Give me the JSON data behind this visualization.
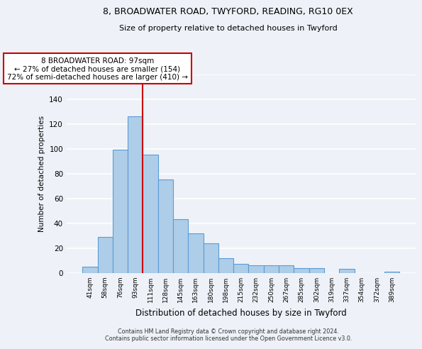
{
  "title1": "8, BROADWATER ROAD, TWYFORD, READING, RG10 0EX",
  "title2": "Size of property relative to detached houses in Twyford",
  "xlabel": "Distribution of detached houses by size in Twyford",
  "ylabel": "Number of detached properties",
  "bar_labels": [
    "41sqm",
    "58sqm",
    "76sqm",
    "93sqm",
    "111sqm",
    "128sqm",
    "145sqm",
    "163sqm",
    "180sqm",
    "198sqm",
    "215sqm",
    "232sqm",
    "250sqm",
    "267sqm",
    "285sqm",
    "302sqm",
    "319sqm",
    "337sqm",
    "354sqm",
    "372sqm",
    "389sqm"
  ],
  "bar_values": [
    5,
    29,
    99,
    126,
    95,
    75,
    43,
    32,
    24,
    12,
    7,
    6,
    6,
    6,
    4,
    4,
    0,
    3,
    0,
    0,
    1
  ],
  "bar_color": "#aecde8",
  "bar_edge_color": "#5b9bd5",
  "vline_x": 3.5,
  "vline_color": "#cc0000",
  "ylim": [
    0,
    160
  ],
  "yticks": [
    0,
    20,
    40,
    60,
    80,
    100,
    120,
    140,
    160
  ],
  "annotation_line1": "8 BROADWATER ROAD: 97sqm",
  "annotation_line2": "← 27% of detached houses are smaller (154)",
  "annotation_line3": "72% of semi-detached houses are larger (410) →",
  "annotation_box_color": "#ffffff",
  "annotation_box_edge": "#cc0000",
  "footer1": "Contains HM Land Registry data © Crown copyright and database right 2024.",
  "footer2": "Contains public sector information licensed under the Open Government Licence v3.0.",
  "background_color": "#eef2f8"
}
